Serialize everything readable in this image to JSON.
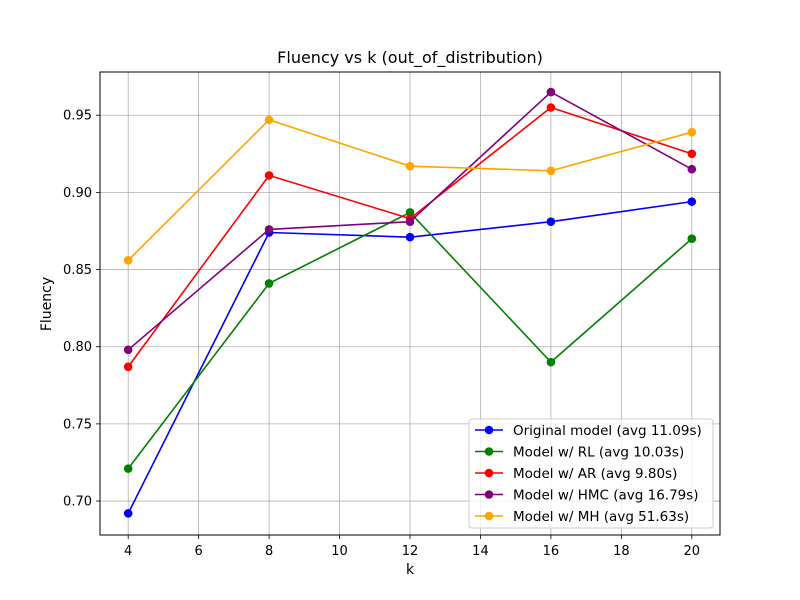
{
  "chart_data": {
    "type": "line",
    "title": "Fluency vs k (out_of_distribution)",
    "xlabel": "k",
    "ylabel": "Fluency",
    "x": [
      4,
      8,
      12,
      16,
      20
    ],
    "xlim": [
      3.2,
      20.8
    ],
    "ylim": [
      0.678,
      0.978
    ],
    "xticks": [
      4,
      6,
      8,
      10,
      12,
      14,
      16,
      18,
      20
    ],
    "yticks": [
      0.7,
      0.75,
      0.8,
      0.85,
      0.9,
      0.95
    ],
    "ytick_labels": [
      "0.70",
      "0.75",
      "0.80",
      "0.85",
      "0.90",
      "0.95"
    ],
    "grid": true,
    "legend_position": "lower right",
    "series": [
      {
        "name": "Original model (avg 11.09s)",
        "color": "#0000ff",
        "values": [
          0.692,
          0.874,
          0.871,
          0.881,
          0.894
        ]
      },
      {
        "name": "Model w/ RL (avg 10.03s)",
        "color": "#008000",
        "values": [
          0.721,
          0.841,
          0.887,
          0.79,
          0.87
        ]
      },
      {
        "name": "Model w/ AR (avg 9.80s)",
        "color": "#ff0000",
        "values": [
          0.787,
          0.911,
          0.883,
          0.955,
          0.925
        ]
      },
      {
        "name": "Model w/ HMC (avg 16.79s)",
        "color": "#800080",
        "values": [
          0.798,
          0.876,
          0.881,
          0.965,
          0.915
        ]
      },
      {
        "name": "Model w/ MH (avg 51.63s)",
        "color": "#ffa500",
        "values": [
          0.856,
          0.947,
          0.917,
          0.914,
          0.939
        ]
      }
    ]
  }
}
